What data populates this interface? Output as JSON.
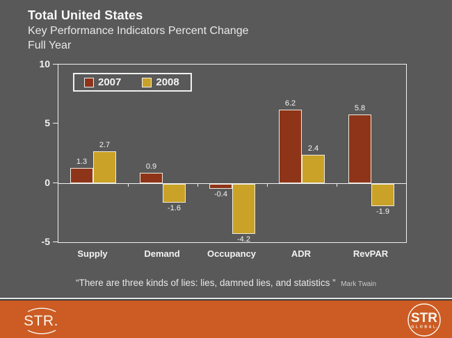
{
  "slide": {
    "title": "Total United States",
    "subtitle": "Key Performance Indicators Percent Change",
    "period": "Full Year"
  },
  "chart_data": {
    "type": "bar",
    "categories": [
      "Supply",
      "Demand",
      "Occupancy",
      "ADR",
      "RevPAR"
    ],
    "series": [
      {
        "name": "2007",
        "color": "#8E3418",
        "values": [
          1.3,
          0.9,
          -0.4,
          6.2,
          5.8
        ]
      },
      {
        "name": "2008",
        "color": "#C9A227",
        "values": [
          2.7,
          -1.6,
          -4.2,
          2.4,
          -1.9
        ]
      }
    ],
    "ylim": [
      -5,
      10
    ],
    "yticks": [
      10,
      5,
      0,
      -5
    ],
    "grid": false,
    "legend_position": "top-left-inside",
    "value_label_format": "one-decimal",
    "title": "Total United States — Key Performance Indicators Percent Change, Full Year"
  },
  "quote": {
    "text": "“There are three kinds of lies: lies, damned lies, and statistics ”",
    "attribution": "Mark Twain"
  },
  "footer": {
    "left_logo_text": "STR.",
    "right_logo_text_top": "STR",
    "right_logo_text_bottom": "G L O B A L."
  },
  "colors": {
    "background": "#595959",
    "series_2007": "#8E3418",
    "series_2008": "#C9A227",
    "footer_band": "#CC5C24",
    "axis_and_text": "#F2F2F2"
  }
}
